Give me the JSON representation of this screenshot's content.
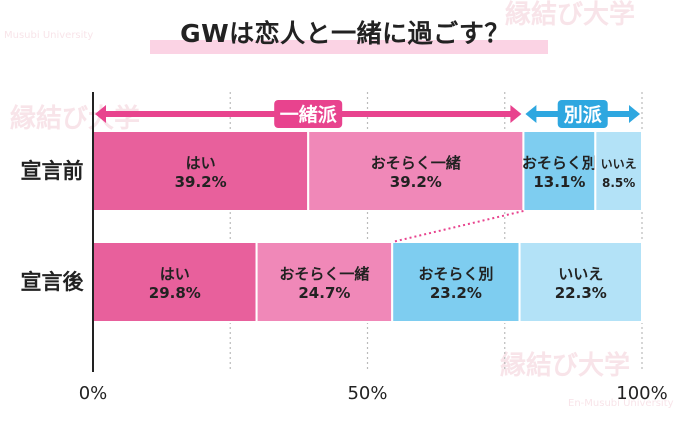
{
  "title": "GWは恋人と一緒に過ごす？",
  "watermark": {
    "brand": "縁結び大学",
    "sub_left": "Musubi University",
    "sub_right": "En-Musubi University"
  },
  "chart_data": {
    "type": "bar",
    "orientation": "horizontal",
    "stacked": true,
    "xlim": [
      0,
      100
    ],
    "x_ticks": [
      "0%",
      "50%",
      "100%"
    ],
    "categories": [
      "宣言前",
      "宣言後"
    ],
    "series": [
      {
        "label": "はい",
        "values": [
          39.2,
          29.8
        ],
        "color": "#e8609c"
      },
      {
        "label": "おそらく一緒",
        "values": [
          39.2,
          24.7
        ],
        "color": "#f088b8"
      },
      {
        "label": "おそらく別",
        "values": [
          13.1,
          23.2
        ],
        "color": "#7ecdf0"
      },
      {
        "label": "いいえ",
        "values": [
          8.5,
          22.3
        ],
        "color": "#b3e2f7"
      }
    ],
    "value_labels": [
      [
        "39.2%",
        "39.2%",
        "13.1%",
        "8.5%"
      ],
      [
        "29.8%",
        "24.7%",
        "23.2%",
        "22.3%"
      ]
    ],
    "group_annotations": [
      {
        "label": "一緒派",
        "color": "#e8438e"
      },
      {
        "label": "別派",
        "color": "#2ea7e0"
      }
    ],
    "grid": "vertical dotted",
    "grid_color": "#bbbbbb"
  }
}
